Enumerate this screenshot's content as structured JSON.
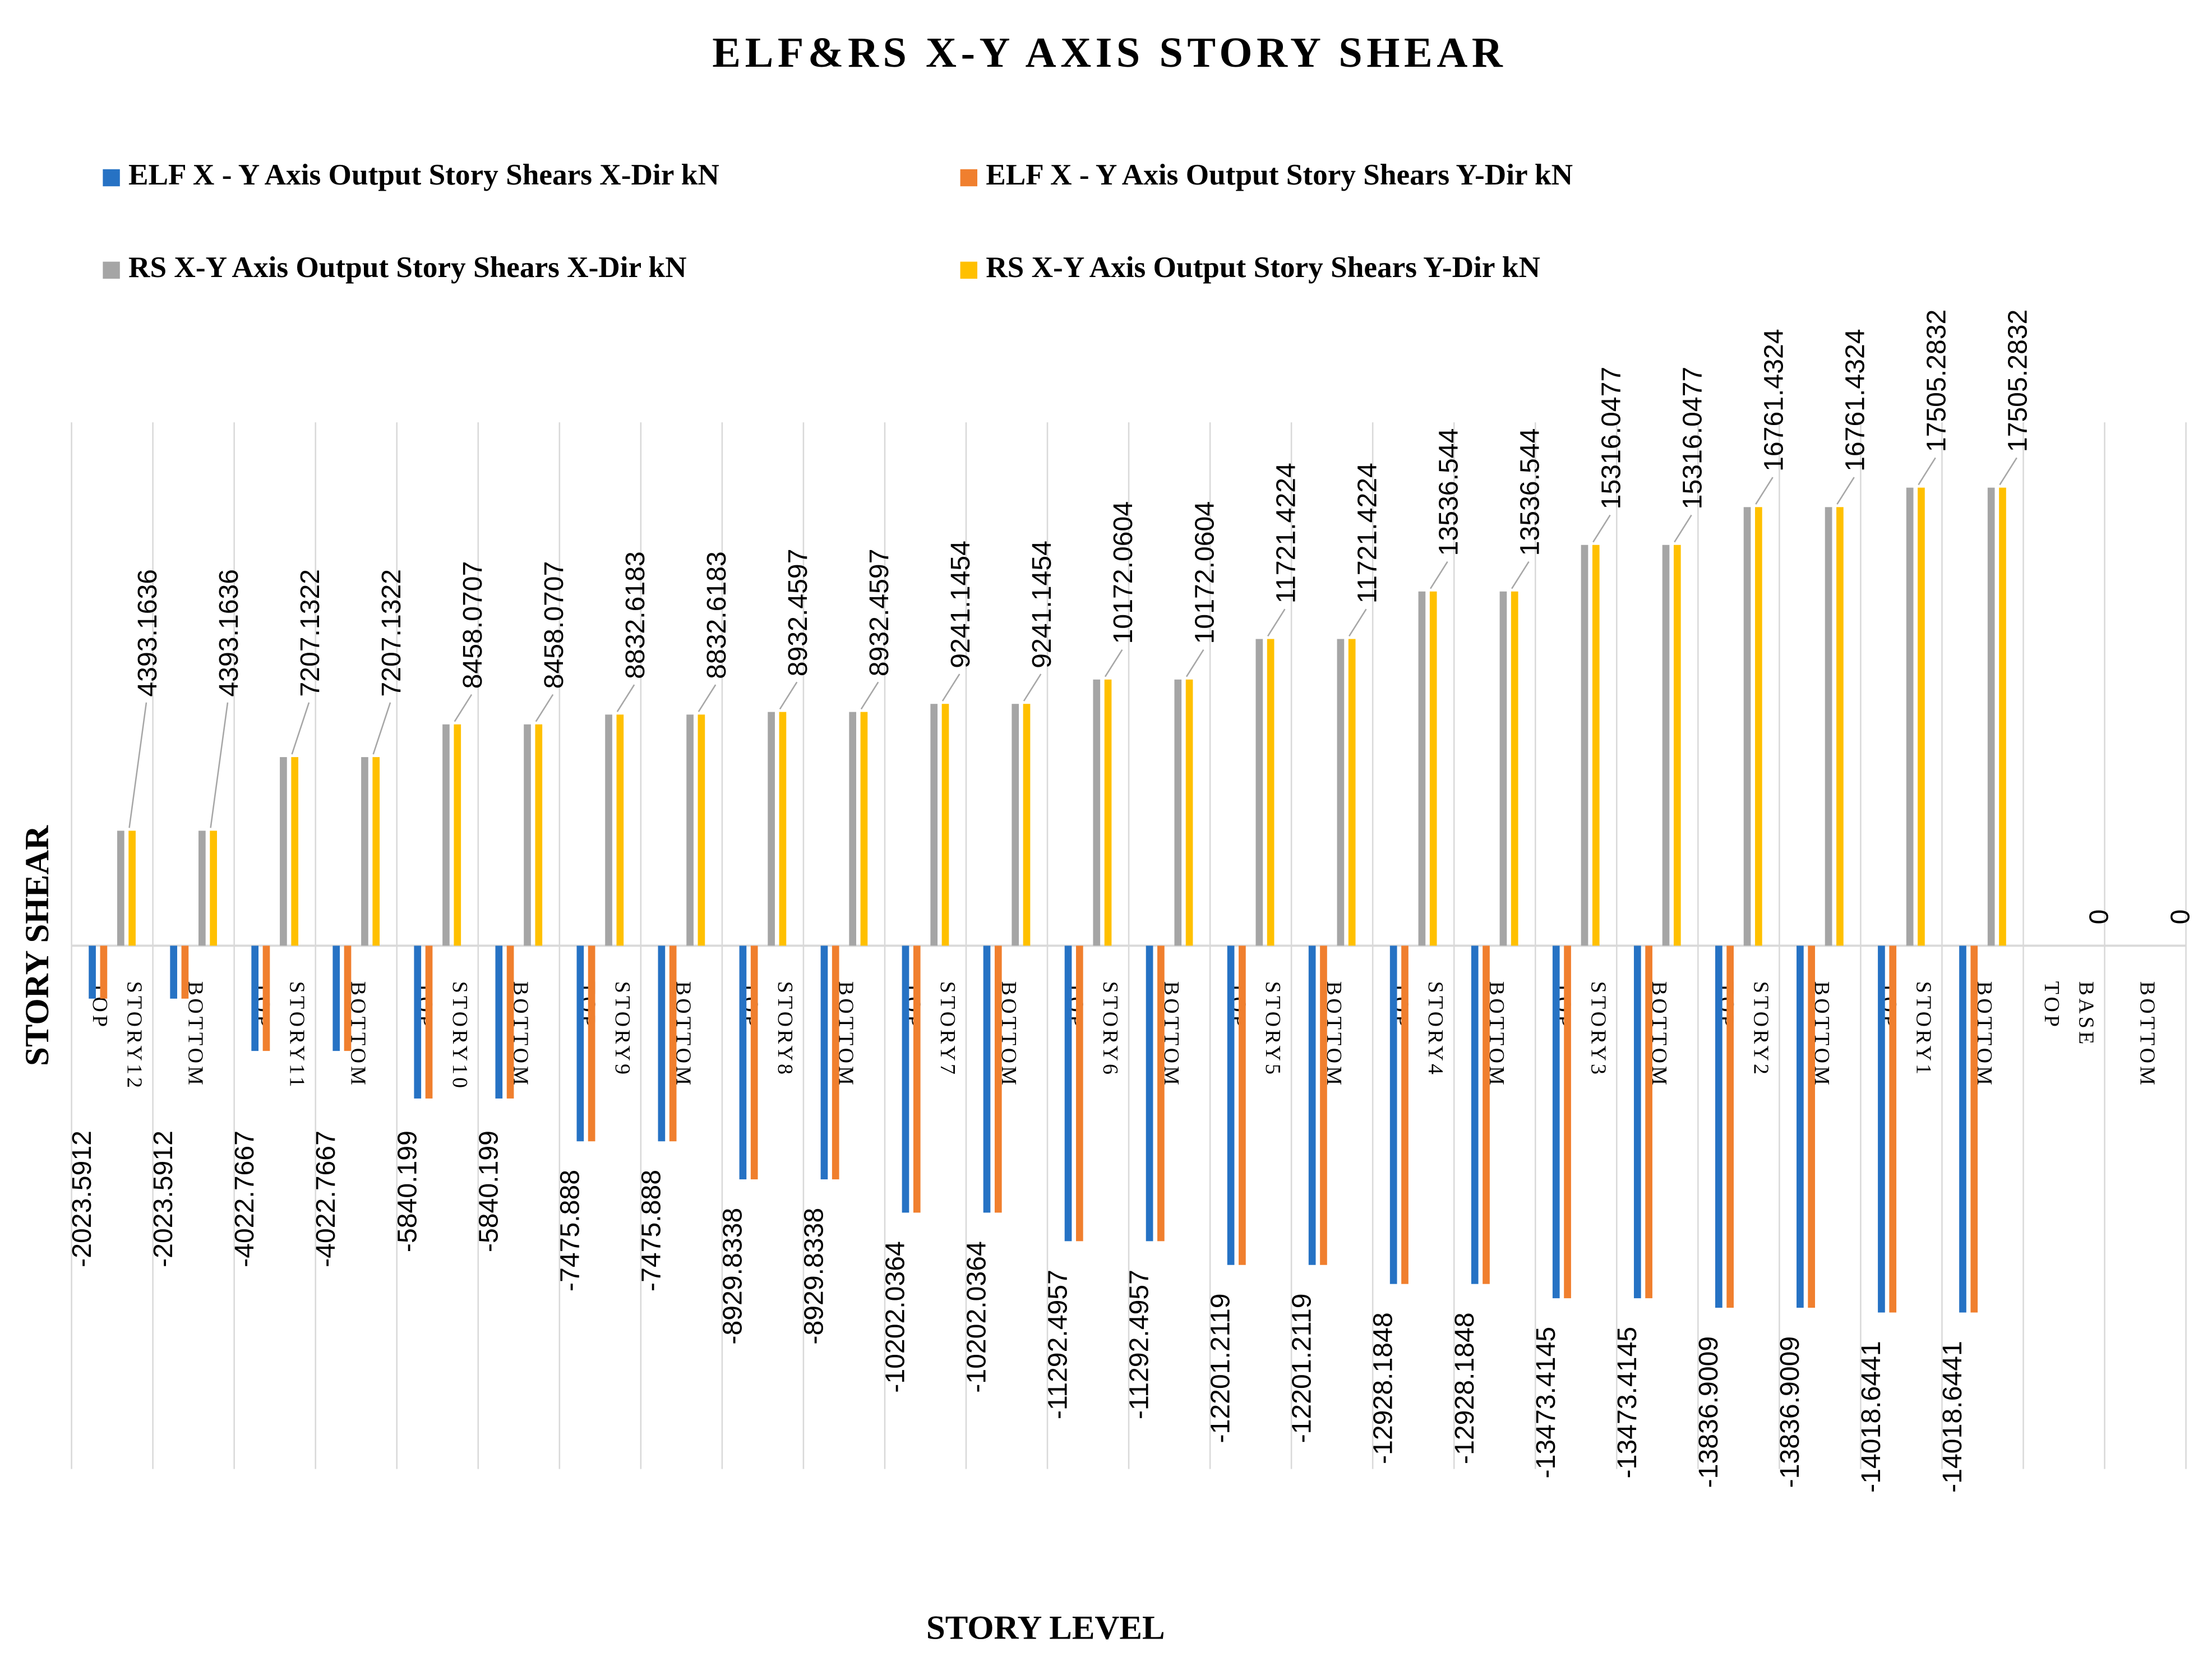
{
  "chart_data": {
    "type": "bar",
    "title": "ELF&RS X-Y AXIS STORY SHEAR",
    "x_label": "STORY LEVEL",
    "y_label": "STORY SHEAR",
    "categories": [
      "TOP",
      "BOTTOM",
      "TOP",
      "BOTTOM",
      "TOP",
      "BOTTOM",
      "TOP",
      "BOTTOM",
      "TOP",
      "BOTTOM",
      "TOP",
      "BOTTOM",
      "TOP",
      "BOTTOM",
      "TOP",
      "BOTTOM",
      "TOP",
      "BOTTOM",
      "TOP",
      "BOTTOM",
      "TOP",
      "BOTTOM",
      "TOP",
      "BOTTOM",
      "TOP",
      "BOTTOM"
    ],
    "category_groups": [
      "STORY12",
      "STORY11",
      "STORY10",
      "STORY9",
      "STORY8",
      "STORY7",
      "STORY6",
      "STORY5",
      "STORY4",
      "STORY3",
      "STORY2",
      "STORY1",
      "BASE"
    ],
    "ylim": [
      -20000,
      20000
    ],
    "series": [
      {
        "name": "ELF X - Y Axis Output Story Shears X-Dir kN",
        "color": "#2672c4",
        "labels": true,
        "values": [
          -2023.5912,
          -2023.5912,
          -4022.7667,
          -4022.7667,
          -5840.199,
          -5840.199,
          -7475.888,
          -7475.888,
          -8929.8338,
          -8929.8338,
          -10202.0364,
          -10202.0364,
          -11292.4957,
          -11292.4957,
          -12201.2119,
          -12201.2119,
          -12928.1848,
          -12928.1848,
          -13473.4145,
          -13473.4145,
          -13836.9009,
          -13836.9009,
          -14018.6441,
          -14018.6441,
          null,
          null
        ]
      },
      {
        "name": "ELF X - Y Axis Output Story Shears Y-Dir kN",
        "color": "#f07f2e",
        "labels": false,
        "values": [
          -2023.5912,
          -2023.5912,
          -4022.7667,
          -4022.7667,
          -5840.199,
          -5840.199,
          -7475.888,
          -7475.888,
          -8929.8338,
          -8929.8338,
          -10202.0364,
          -10202.0364,
          -11292.4957,
          -11292.4957,
          -12201.2119,
          -12201.2119,
          -12928.1848,
          -12928.1848,
          -13473.4145,
          -13473.4145,
          -13836.9009,
          -13836.9009,
          -14018.6441,
          -14018.6441,
          null,
          null
        ]
      },
      {
        "name": "RS X-Y Axis Output Story Shears X-Dir kN",
        "color": "#a5a5a5",
        "labels": false,
        "values": [
          4393.1636,
          4393.1636,
          7207.1322,
          7207.1322,
          8458.0707,
          8458.0707,
          8832.6183,
          8832.6183,
          8932.4597,
          8932.4597,
          9241.1454,
          9241.1454,
          10172.0604,
          10172.0604,
          11721.4224,
          11721.4224,
          13536.544,
          13536.544,
          15316.0477,
          15316.0477,
          16761.4324,
          16761.4324,
          17505.2832,
          17505.2832,
          0,
          0
        ]
      },
      {
        "name": "RS X-Y Axis Output Story Shears Y-Dir kN",
        "color": "#ffc000",
        "labels": true,
        "values": [
          4393.1636,
          4393.1636,
          7207.1322,
          7207.1322,
          8458.0707,
          8458.0707,
          8832.6183,
          8832.6183,
          8932.4597,
          8932.4597,
          9241.1454,
          9241.1454,
          10172.0604,
          10172.0604,
          11721.4224,
          11721.4224,
          13536.544,
          13536.544,
          15316.0477,
          15316.0477,
          16761.4324,
          16761.4324,
          17505.2832,
          17505.2832,
          0,
          0
        ]
      }
    ]
  }
}
